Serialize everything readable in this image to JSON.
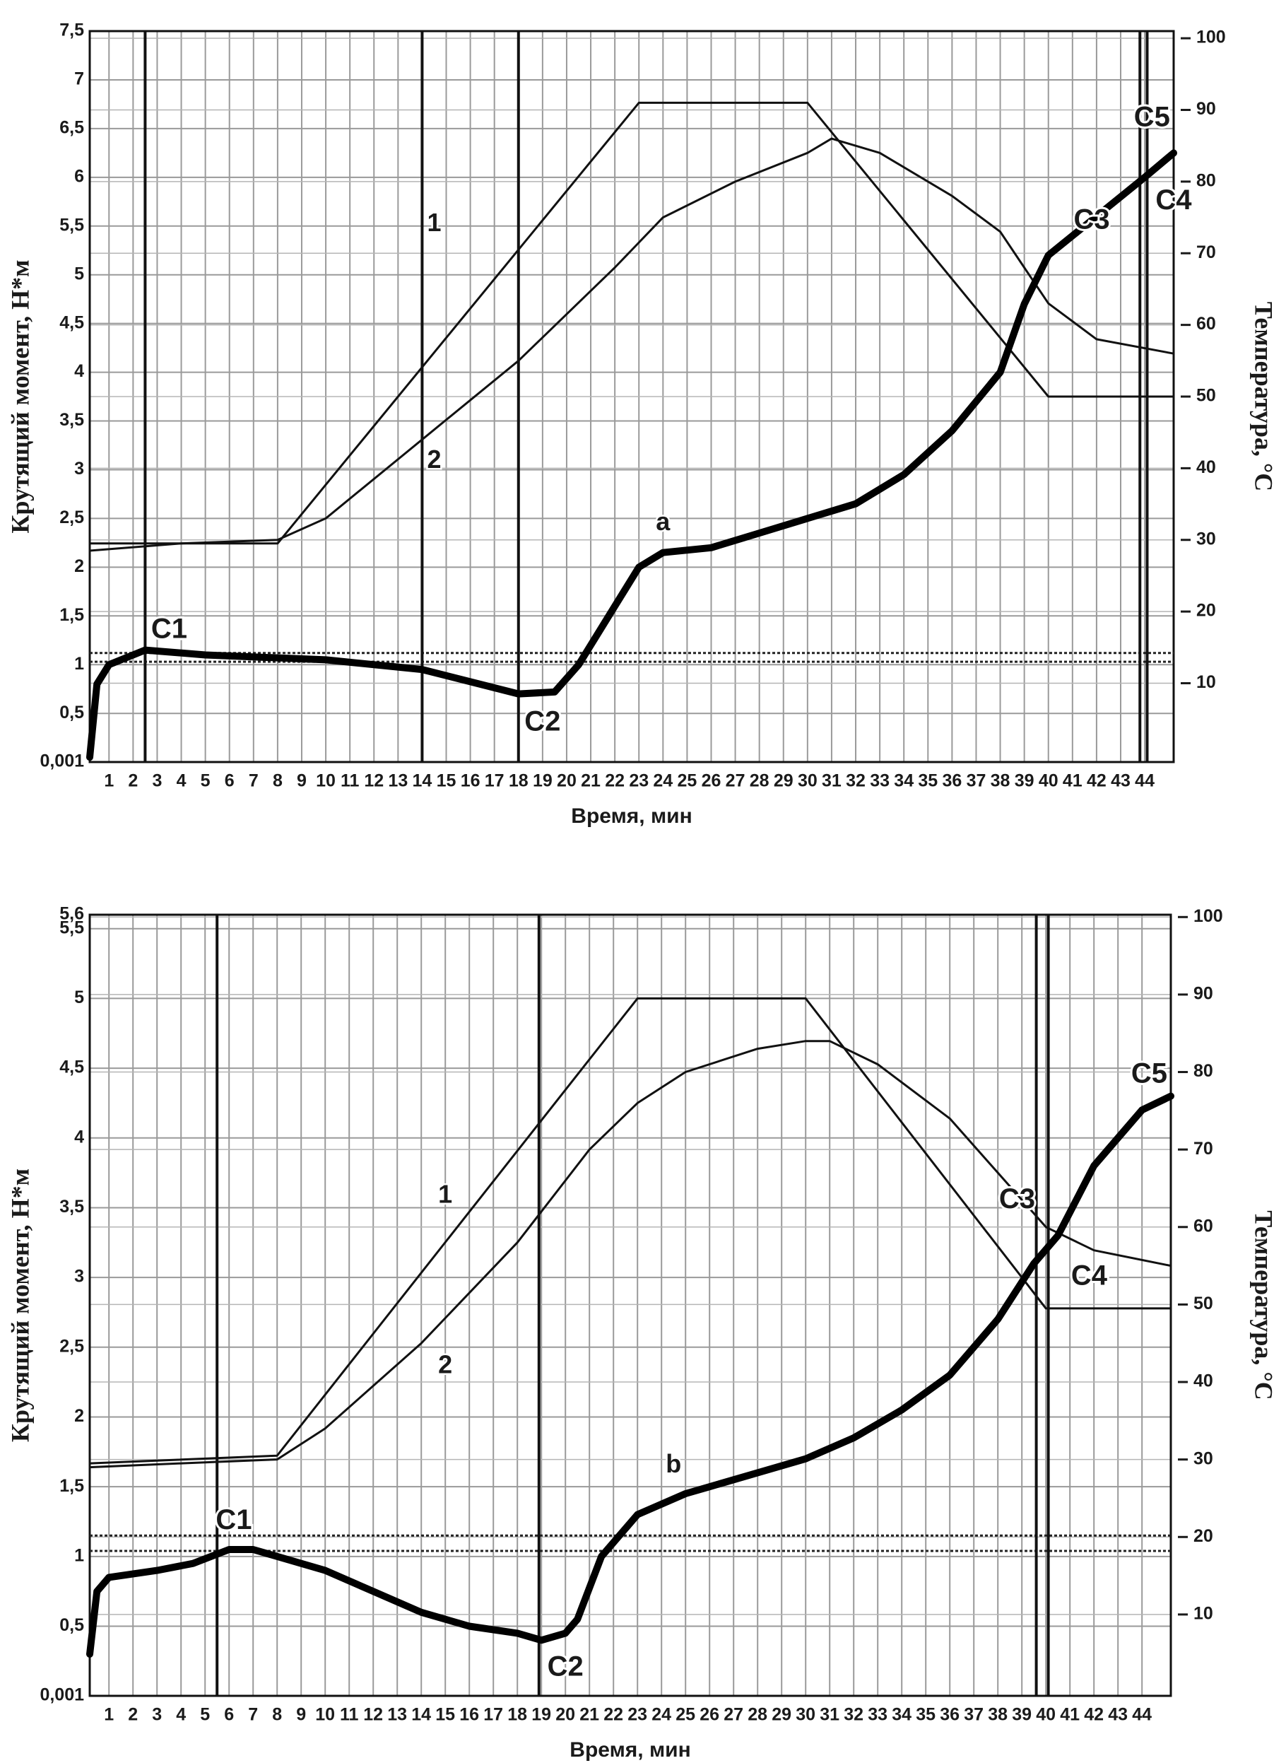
{
  "chart_data": [
    {
      "type": "line",
      "ylabel": "Крутящий момент, Н*м",
      "y2label": "Температура, °C",
      "xlabel": "Время, мин",
      "xlim": [
        0.2,
        45.2
      ],
      "xticks": [
        1,
        2,
        3,
        4,
        5,
        6,
        7,
        8,
        9,
        10,
        11,
        12,
        13,
        14,
        15,
        16,
        17,
        18,
        19,
        20,
        21,
        22,
        23,
        24,
        25,
        26,
        27,
        28,
        29,
        30,
        31,
        32,
        33,
        34,
        35,
        36,
        37,
        38,
        39,
        40,
        41,
        42,
        43,
        44
      ],
      "ylim": [
        0.001,
        7.5
      ],
      "yticks": [
        {
          "value": 0.001,
          "label": "0,001"
        },
        {
          "value": 0.5,
          "label": "0,5"
        },
        1,
        {
          "value": 1.5,
          "label": "1,5"
        },
        2,
        {
          "value": 2.5,
          "label": "2,5"
        },
        3,
        {
          "value": 3.5,
          "label": "3,5"
        },
        4,
        {
          "value": 4.5,
          "label": "4,5"
        },
        5,
        {
          "value": 5.5,
          "label": "5,5"
        },
        6,
        {
          "value": 6.5,
          "label": "6,5"
        },
        7,
        {
          "value": 7.5,
          "label": "7,5"
        }
      ],
      "y2lim": [
        -1,
        101
      ],
      "y2ticks": [
        10,
        20,
        30,
        40,
        50,
        60,
        70,
        80,
        90,
        100
      ],
      "grid": true,
      "series": [
        {
          "name": "1",
          "color": "#111111",
          "axis": "y2",
          "x": [
            0.2,
            8,
            23,
            30,
            40,
            45.2
          ],
          "values": [
            29.5,
            29.5,
            91,
            91,
            50,
            50
          ]
        },
        {
          "name": "2",
          "color": "#111111",
          "axis": "y2",
          "x": [
            0.2,
            4,
            8,
            10,
            14,
            18,
            22,
            24,
            27,
            30,
            31,
            33,
            36,
            38,
            39,
            40,
            42,
            45.2
          ],
          "values": [
            28.5,
            29.5,
            30,
            33,
            44,
            55,
            68,
            75,
            80,
            84,
            86,
            84,
            78,
            73,
            68,
            63,
            58,
            56
          ]
        },
        {
          "name": "a",
          "color": "#000000",
          "x": [
            0.2,
            0.5,
            1,
            2.5,
            5,
            10,
            14,
            18,
            19.5,
            20.5,
            22,
            23,
            24,
            26,
            28,
            30,
            32,
            34,
            36,
            38,
            39,
            40,
            42,
            44,
            45.2
          ],
          "values": [
            0.05,
            0.8,
            1.0,
            1.15,
            1.1,
            1.05,
            0.95,
            0.7,
            0.72,
            1.0,
            1.6,
            2.0,
            2.15,
            2.2,
            2.35,
            2.5,
            2.65,
            2.95,
            3.4,
            4.0,
            4.7,
            5.2,
            5.6,
            6.0,
            6.25
          ]
        }
      ],
      "vlines": [
        2.5,
        14,
        18,
        43.8,
        44.1
      ],
      "hlines": [
        1.03,
        1.12
      ],
      "annotations": [
        {
          "text": "C1",
          "x": 3.5,
          "y": 1.35
        },
        {
          "text": "C2",
          "x": 19,
          "y": 0.4
        },
        {
          "text": "C3",
          "x": 41.8,
          "y": 5.55
        },
        {
          "text": "C4",
          "x": 45.2,
          "y": 5.75
        },
        {
          "text": "C5",
          "x": 44.3,
          "y": 6.6
        }
      ]
    },
    {
      "type": "line",
      "ylabel": "Крутящий момент, Н*м",
      "y2label": "Температура, °C",
      "xlabel": "Время, мин",
      "xlim": [
        0.2,
        45.2
      ],
      "xticks": [
        1,
        2,
        3,
        4,
        5,
        6,
        7,
        8,
        9,
        10,
        11,
        12,
        13,
        14,
        15,
        16,
        17,
        18,
        19,
        20,
        21,
        22,
        23,
        24,
        25,
        26,
        27,
        28,
        29,
        30,
        31,
        32,
        33,
        34,
        35,
        36,
        37,
        38,
        39,
        40,
        41,
        42,
        43,
        44
      ],
      "ylim": [
        0.001,
        5.6
      ],
      "yticks": [
        {
          "value": 0.001,
          "label": "0,001"
        },
        {
          "value": 0.5,
          "label": "0,5"
        },
        1,
        {
          "value": 1.5,
          "label": "1,5"
        },
        2,
        {
          "value": 2.5,
          "label": "2,5"
        },
        3,
        {
          "value": 3.5,
          "label": "3,5"
        },
        4,
        {
          "value": 4.5,
          "label": "4,5"
        },
        5,
        {
          "value": 5.5,
          "label": "5,5"
        },
        {
          "value": 5.6,
          "label": "5,6"
        }
      ],
      "y2lim": [
        -0.5,
        100.3
      ],
      "y2ticks": [
        10,
        20,
        30,
        40,
        50,
        60,
        70,
        80,
        90,
        100
      ],
      "grid": true,
      "series": [
        {
          "name": "1",
          "color": "#111111",
          "axis": "y2",
          "x": [
            0.2,
            8,
            23,
            30,
            40,
            45.2
          ],
          "values": [
            29.5,
            30.5,
            89.5,
            89.5,
            49.5,
            49.5
          ]
        },
        {
          "name": "2",
          "color": "#111111",
          "axis": "y2",
          "x": [
            0.2,
            4,
            8,
            10,
            14,
            18,
            21,
            23,
            25,
            28,
            30,
            31,
            33,
            36,
            38,
            40,
            42,
            45.2
          ],
          "values": [
            29,
            29.5,
            30,
            34,
            45,
            58,
            70,
            76,
            80,
            83,
            84,
            84,
            81,
            74,
            67,
            60,
            57,
            55
          ]
        },
        {
          "name": "b",
          "color": "#000000",
          "x": [
            0.2,
            0.5,
            1,
            3,
            4.5,
            6,
            7,
            8,
            10,
            12,
            14,
            16,
            18,
            19,
            20,
            20.5,
            21.5,
            23,
            25,
            26,
            28,
            30,
            32,
            34,
            36,
            38,
            39.5,
            40.5,
            42,
            44,
            45.2
          ],
          "values": [
            0.3,
            0.75,
            0.85,
            0.9,
            0.95,
            1.05,
            1.05,
            1.0,
            0.9,
            0.75,
            0.6,
            0.5,
            0.45,
            0.4,
            0.45,
            0.55,
            1.0,
            1.3,
            1.45,
            1.5,
            1.6,
            1.7,
            1.85,
            2.05,
            2.3,
            2.7,
            3.1,
            3.3,
            3.8,
            4.2,
            4.3
          ]
        }
      ],
      "vlines": [
        5.5,
        18.9,
        39.6,
        40.1
      ],
      "hlines": [
        1.04,
        1.15
      ],
      "annotations": [
        {
          "text": "C1",
          "x": 6.2,
          "y": 1.25
        },
        {
          "text": "C2",
          "x": 20,
          "y": 0.2
        },
        {
          "text": "C3",
          "x": 38.8,
          "y": 3.55
        },
        {
          "text": "C4",
          "x": 41.8,
          "y": 3.0
        },
        {
          "text": "C5",
          "x": 44.3,
          "y": 4.45
        }
      ]
    }
  ]
}
